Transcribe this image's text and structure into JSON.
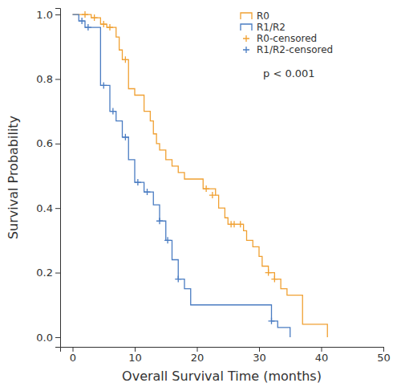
{
  "chart_data": {
    "type": "line",
    "x_label": "Overall Survival Time (months)",
    "y_label": "Survival Probability",
    "xlim": [
      -2,
      50
    ],
    "xticks": [
      0,
      10,
      20,
      30,
      40,
      50
    ],
    "ylim": [
      -0.03,
      1.02
    ],
    "yticks": [
      {
        "value": 0,
        "label": "0.0"
      },
      0.2,
      0.4,
      0.6,
      0.8,
      {
        "value": 1,
        "label": "1.0"
      }
    ],
    "grid": false,
    "legend": "top-right",
    "annotations": [
      {
        "text": "p < 0.001"
      }
    ],
    "series": [
      {
        "name": "R0",
        "type": "step",
        "color": "#f0a032",
        "x": [
          0,
          3,
          4.5,
          5.5,
          7,
          7.5,
          8,
          9,
          10,
          11.5,
          12.5,
          13,
          13.5,
          14,
          15,
          16,
          17,
          18,
          21,
          23,
          23.5,
          24.5,
          25,
          27.5,
          28,
          29,
          30,
          30.5,
          31.5,
          32.5,
          33.5,
          34.5,
          37,
          41
        ],
        "values": [
          1,
          0.99,
          0.97,
          0.96,
          0.93,
          0.89,
          0.86,
          0.77,
          0.75,
          0.7,
          0.67,
          0.63,
          0.6,
          0.58,
          0.55,
          0.53,
          0.51,
          0.49,
          0.46,
          0.44,
          0.4,
          0.37,
          0.35,
          0.33,
          0.3,
          0.28,
          0.25,
          0.22,
          0.2,
          0.18,
          0.15,
          0.13,
          0.04,
          0
        ]
      },
      {
        "name": "R1/R2",
        "type": "step",
        "color": "#4a7cc2",
        "x": [
          0,
          1,
          2,
          4.5,
          6,
          7,
          8,
          9,
          10,
          11.5,
          13,
          14,
          15,
          16,
          17,
          18,
          19,
          32,
          33,
          35
        ],
        "values": [
          1,
          0.98,
          0.96,
          0.78,
          0.7,
          0.67,
          0.62,
          0.55,
          0.48,
          0.45,
          0.41,
          0.36,
          0.3,
          0.24,
          0.18,
          0.15,
          0.1,
          0.05,
          0.03,
          0
        ]
      },
      {
        "name": "R0-censored",
        "type": "scatter",
        "marker": "plus",
        "color": "#f0a032",
        "x": [
          2,
          3.5,
          5,
          6,
          8.5,
          21.5,
          22.5,
          25.5,
          26,
          27,
          31.5,
          32.5
        ],
        "values": [
          1,
          0.99,
          0.97,
          0.96,
          0.86,
          0.46,
          0.44,
          0.35,
          0.35,
          0.35,
          0.2,
          0.18
        ]
      },
      {
        "name": "R1/R2-censored",
        "type": "scatter",
        "marker": "plus",
        "color": "#4a7cc2",
        "x": [
          1.5,
          2.5,
          5,
          6.5,
          8.5,
          10.5,
          12,
          14,
          15.3,
          17,
          32
        ],
        "values": [
          0.98,
          0.96,
          0.78,
          0.7,
          0.62,
          0.48,
          0.45,
          0.36,
          0.3,
          0.18,
          0.05
        ]
      }
    ]
  }
}
